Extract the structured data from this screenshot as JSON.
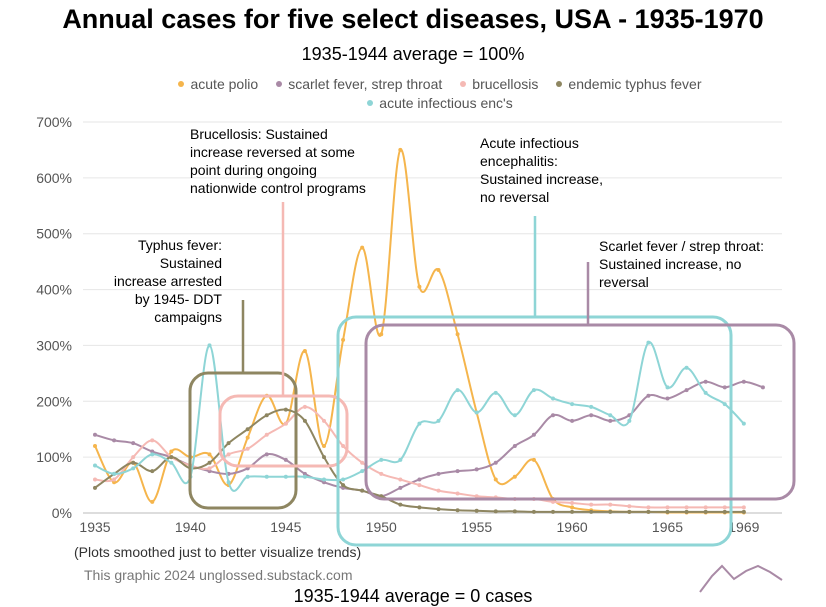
{
  "chart_data": {
    "type": "line",
    "title": "Annual cases for five select diseases, USA - 1935-1970",
    "subtitle": "1935-1944 average = 100%",
    "xlabel": "",
    "ylabel": "",
    "x_ticks": [
      "1935",
      "1940",
      "1945",
      "1950",
      "1955",
      "1960",
      "1965",
      "1969"
    ],
    "y_ticks": [
      "0%",
      "100%",
      "200%",
      "300%",
      "400%",
      "500%",
      "600%",
      "700%"
    ],
    "xlim": [
      1935,
      1971
    ],
    "ylim": [
      0,
      700
    ],
    "grid": true,
    "legend_position": "top",
    "x": [
      1935,
      1936,
      1937,
      1938,
      1939,
      1940,
      1941,
      1942,
      1943,
      1944,
      1945,
      1946,
      1947,
      1948,
      1949,
      1950,
      1951,
      1952,
      1953,
      1954,
      1955,
      1956,
      1957,
      1958,
      1959,
      1960,
      1961,
      1962,
      1963,
      1964,
      1965,
      1966,
      1967,
      1968,
      1969,
      1970
    ],
    "series": [
      {
        "name": "acute polio",
        "color": "#f5b54c",
        "values": [
          120,
          55,
          90,
          20,
          110,
          100,
          105,
          50,
          135,
          210,
          160,
          290,
          120,
          310,
          475,
          320,
          650,
          405,
          435,
          320,
          180,
          60,
          65,
          95,
          25,
          10,
          5,
          3,
          2,
          2,
          1,
          1,
          1,
          1,
          1,
          null
        ]
      },
      {
        "name": "scarlet fever, strep throat",
        "color": "#a98aa6",
        "values": [
          140,
          130,
          125,
          110,
          100,
          85,
          75,
          70,
          80,
          105,
          95,
          70,
          55,
          45,
          40,
          30,
          45,
          60,
          70,
          75,
          78,
          90,
          120,
          140,
          175,
          165,
          175,
          165,
          175,
          210,
          205,
          220,
          235,
          225,
          235,
          225
        ]
      },
      {
        "name": "brucellosis",
        "color": "#f5b9b4",
        "values": [
          60,
          60,
          100,
          130,
          100,
          85,
          80,
          105,
          115,
          140,
          160,
          190,
          165,
          120,
          90,
          70,
          60,
          50,
          40,
          35,
          30,
          28,
          25,
          25,
          20,
          18,
          15,
          15,
          12,
          10,
          10,
          10,
          10,
          10,
          10,
          null
        ]
      },
      {
        "name": "endemic typhus fever",
        "color": "#8e8661",
        "values": [
          45,
          70,
          90,
          75,
          100,
          80,
          90,
          125,
          150,
          175,
          185,
          165,
          100,
          50,
          40,
          30,
          15,
          10,
          7,
          5,
          4,
          3,
          3,
          2,
          2,
          2,
          2,
          2,
          2,
          2,
          2,
          2,
          2,
          2,
          2,
          null
        ]
      },
      {
        "name": "acute infectious enc's",
        "color": "#8ed5d6",
        "values": [
          85,
          70,
          80,
          105,
          90,
          65,
          300,
          55,
          65,
          65,
          65,
          65,
          60,
          60,
          75,
          95,
          95,
          160,
          165,
          220,
          180,
          215,
          175,
          220,
          205,
          195,
          190,
          175,
          165,
          305,
          225,
          260,
          215,
          195,
          160,
          null
        ]
      }
    ]
  },
  "annotations": {
    "brucellosis": [
      "Brucellosis: Sustained",
      "increase reversed at some",
      "point during ongoing",
      "nationwide control programs"
    ],
    "typhus": [
      "Typhus fever:",
      "Sustained",
      "increase arrested",
      "by 1945- DDT",
      "campaigns"
    ],
    "encephalitis": [
      "Acute infectious",
      "encephalitis:",
      "Sustained increase,",
      "no reversal"
    ],
    "scarlet": [
      "Scarlet fever / strep throat:",
      "Sustained increase, no",
      "reversal"
    ]
  },
  "smoothing_note": "(Plots smoothed just to better visualize trends)",
  "credit": "This graphic 2024 unglossed.substack.com",
  "second_chart_subtitle": "1935-1944 average = 0 cases"
}
